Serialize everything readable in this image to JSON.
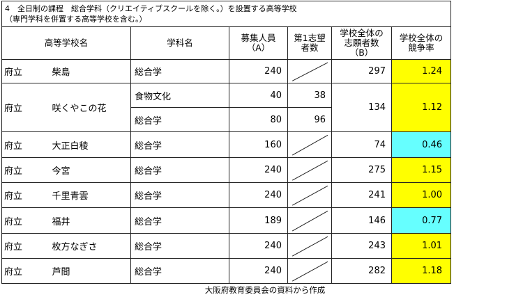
{
  "title": {
    "lines": [
      "4　全日制の課程　総合学科（クリエイティブスクールを除く。）を設置する高等学校",
      "（専門学科を併置する高等学校を含む。）"
    ]
  },
  "table": {
    "headers": [
      "高等学校名",
      "学科名",
      "募集人員\n（A）",
      "第1志望\n者数",
      "学校全体の\n志願者数\n（B）",
      "学校全体の\n競争率"
    ],
    "rows": [
      {
        "type": "府立",
        "school": "柴島",
        "departments": [
          {
            "name": "総合学",
            "capacity": "240"
          }
        ],
        "applicants": "297",
        "ratio": "1.24",
        "ratio_color": "#ffff00"
      },
      {
        "type": "府立",
        "school": "咲くやこの花",
        "departments": [
          {
            "name": "食物文化",
            "capacity": "40",
            "first_choice": "38"
          },
          {
            "name": "総合学",
            "capacity": "80",
            "first_choice": "96"
          }
        ],
        "applicants": "134",
        "ratio": "1.12",
        "ratio_color": "#ffff00"
      },
      {
        "type": "府立",
        "school": "大正白稜",
        "departments": [
          {
            "name": "総合学",
            "capacity": "160"
          }
        ],
        "applicants": "74",
        "ratio": "0.46",
        "ratio_color": "#66ffff"
      },
      {
        "type": "府立",
        "school": "今宮",
        "departments": [
          {
            "name": "総合学",
            "capacity": "240"
          }
        ],
        "applicants": "275",
        "ratio": "1.15",
        "ratio_color": "#ffff00"
      },
      {
        "type": "府立",
        "school": "千里青雲",
        "departments": [
          {
            "name": "総合学",
            "capacity": "240"
          }
        ],
        "applicants": "241",
        "ratio": "1.00",
        "ratio_color": "#ffff00"
      },
      {
        "type": "府立",
        "school": "福井",
        "departments": [
          {
            "name": "総合学",
            "capacity": "189"
          }
        ],
        "applicants": "146",
        "ratio": "0.77",
        "ratio_color": "#66ffff"
      },
      {
        "type": "府立",
        "school": "枚方なぎさ",
        "departments": [
          {
            "name": "総合学",
            "capacity": "240"
          }
        ],
        "applicants": "243",
        "ratio": "1.01",
        "ratio_color": "#ffff00"
      },
      {
        "type": "府立",
        "school": "芦間",
        "departments": [
          {
            "name": "総合学",
            "capacity": "240"
          }
        ],
        "applicants": "282",
        "ratio": "1.18",
        "ratio_color": "#ffff00"
      }
    ]
  },
  "footer": "大阪府教育委員会の資料から作成"
}
